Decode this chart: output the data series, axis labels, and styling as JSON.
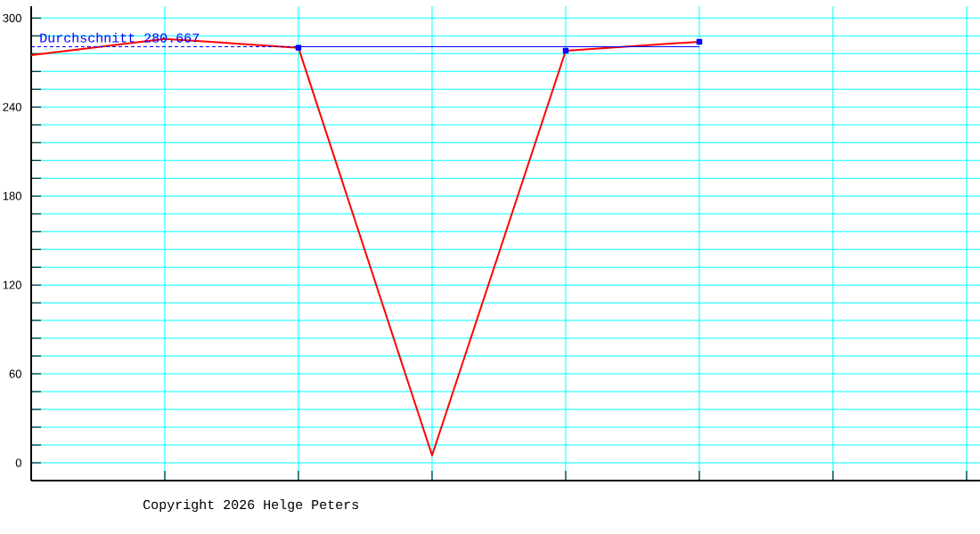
{
  "chart_data": {
    "type": "line",
    "categories": [
      null,
      null,
      null,
      null,
      null,
      null,
      null,
      null
    ],
    "series": [
      {
        "color": "#ff0000",
        "marker": "none",
        "values": [
          275,
          286,
          280,
          5,
          278,
          284,
          null,
          null
        ]
      },
      {
        "type": "scatter",
        "color": "#0000ff",
        "marker": "square",
        "values": [
          null,
          null,
          280,
          null,
          278,
          284,
          null,
          null
        ]
      },
      {
        "color": "#0000ff",
        "marker": "none",
        "values": [
          null,
          null,
          280.667,
          280.667,
          280.667,
          280.667,
          null,
          null
        ]
      }
    ],
    "ylim": [
      -12,
      308
    ],
    "yticks": [
      0,
      {
        "value": 12,
        "label": null
      },
      {
        "value": 24,
        "label": null
      },
      {
        "value": 36,
        "label": null
      },
      {
        "value": 48,
        "label": null
      },
      60,
      {
        "value": 72,
        "label": null
      },
      {
        "value": 84,
        "label": null
      },
      {
        "value": 96,
        "label": null
      },
      {
        "value": 108,
        "label": null
      },
      120,
      {
        "value": 132,
        "label": null
      },
      {
        "value": 144,
        "label": null
      },
      {
        "value": 156,
        "label": null
      },
      {
        "value": 168,
        "label": null
      },
      180,
      {
        "value": 192,
        "label": null
      },
      {
        "value": 204,
        "label": null
      },
      {
        "value": 216,
        "label": null
      },
      {
        "value": 228,
        "label": null
      },
      240,
      {
        "value": 252,
        "label": null
      },
      {
        "value": 264,
        "label": null
      },
      {
        "value": 276,
        "label": null
      },
      {
        "value": 288,
        "label": null
      },
      300
    ],
    "grid": true,
    "ref_lines": [
      {
        "axis": "y",
        "value": 280.667,
        "label": "Durchschnitt 280.667",
        "color": "#0000ff",
        "line_style": "dashed"
      }
    ],
    "annotations": [
      "Copyright 2026 Helge Peters"
    ]
  }
}
